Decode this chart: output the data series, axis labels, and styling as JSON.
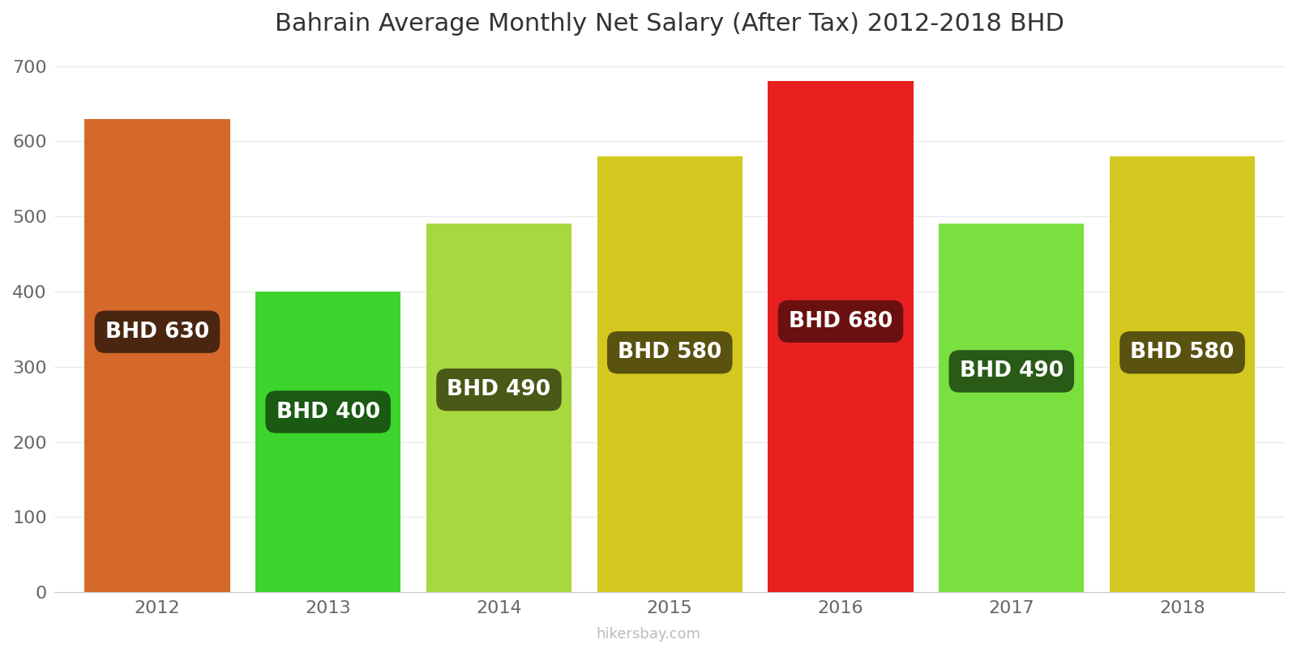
{
  "years": [
    2012,
    2013,
    2014,
    2015,
    2016,
    2017,
    2018
  ],
  "values": [
    630,
    400,
    490,
    580,
    680,
    490,
    580
  ],
  "bar_colors": [
    "#D4692A",
    "#3DD42D",
    "#A8D840",
    "#D4C820",
    "#E82020",
    "#7AE040",
    "#D4C820"
  ],
  "label_bg_colors": [
    "#4A2510",
    "#1A5A12",
    "#4A5818",
    "#5A5210",
    "#6A1010",
    "#2A5A18",
    "#5A5210"
  ],
  "label_y_fractions": [
    0.55,
    0.6,
    0.55,
    0.55,
    0.53,
    0.6,
    0.55
  ],
  "title": "Bahrain Average Monthly Net Salary (After Tax) 2012-2018 BHD",
  "ylabel_ticks": [
    0,
    100,
    200,
    300,
    400,
    500,
    600,
    700
  ],
  "ylim": [
    0,
    720
  ],
  "watermark": "hikersbay.com",
  "background_color": "#ffffff",
  "grid_color": "#e8e8e8",
  "label_text_color": "#ffffff",
  "label_fontsize": 19,
  "title_fontsize": 22,
  "bar_width": 0.85
}
